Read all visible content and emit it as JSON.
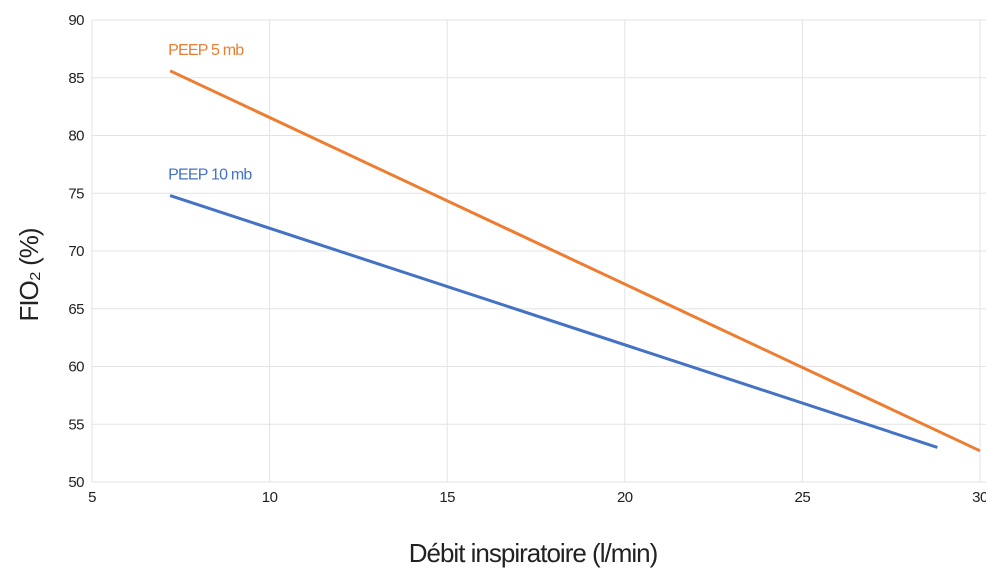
{
  "chart_data": {
    "type": "line",
    "title": "",
    "xlabel": "Débit inspiratoire (l/min)",
    "ylabel": "FIO₂ (%)",
    "xlim": [
      5,
      30
    ],
    "ylim": [
      50,
      90
    ],
    "xticks": [
      5,
      10,
      15,
      20,
      25,
      30
    ],
    "yticks": [
      50,
      55,
      60,
      65,
      70,
      75,
      80,
      85,
      90
    ],
    "grid": true,
    "legend": "inline labels at line start",
    "series": [
      {
        "name": "PEEP 5 mb",
        "color": "#ed7d31",
        "x": [
          7.2,
          30
        ],
        "y": [
          85.6,
          52.7
        ]
      },
      {
        "name": "PEEP 10 mb",
        "color": "#4472c4",
        "x": [
          7.2,
          28.8
        ],
        "y": [
          74.8,
          53.0
        ]
      }
    ]
  }
}
